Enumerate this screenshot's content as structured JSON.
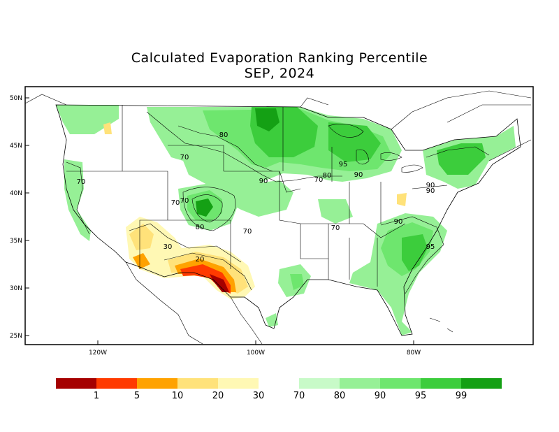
{
  "title": {
    "line1": "Calculated Evaporation Ranking Percentile",
    "line2": "SEP, 2024"
  },
  "map": {
    "lat_labels": [
      "50N",
      "45N",
      "40N",
      "35N",
      "30N",
      "25N"
    ],
    "lon_labels": [
      "120W",
      "100W",
      "80W"
    ],
    "contour_labels": [
      "80",
      "70",
      "70",
      "70",
      "70",
      "80",
      "70",
      "90",
      "70",
      "80",
      "90",
      "95",
      "90",
      "90",
      "70",
      "90",
      "95",
      "30",
      "20"
    ]
  },
  "legend": {
    "low": {
      "colors": [
        "#a50000",
        "#ff3a00",
        "#ffa200",
        "#ffe27a",
        "#fff8b4"
      ],
      "labels": [
        "1",
        "5",
        "10",
        "20",
        "30"
      ]
    },
    "high": {
      "colors": [
        "#c8fac8",
        "#96f096",
        "#6ee66e",
        "#3ccd3c",
        "#14a014"
      ],
      "labels": [
        "70",
        "80",
        "90",
        "95",
        "99"
      ]
    }
  }
}
